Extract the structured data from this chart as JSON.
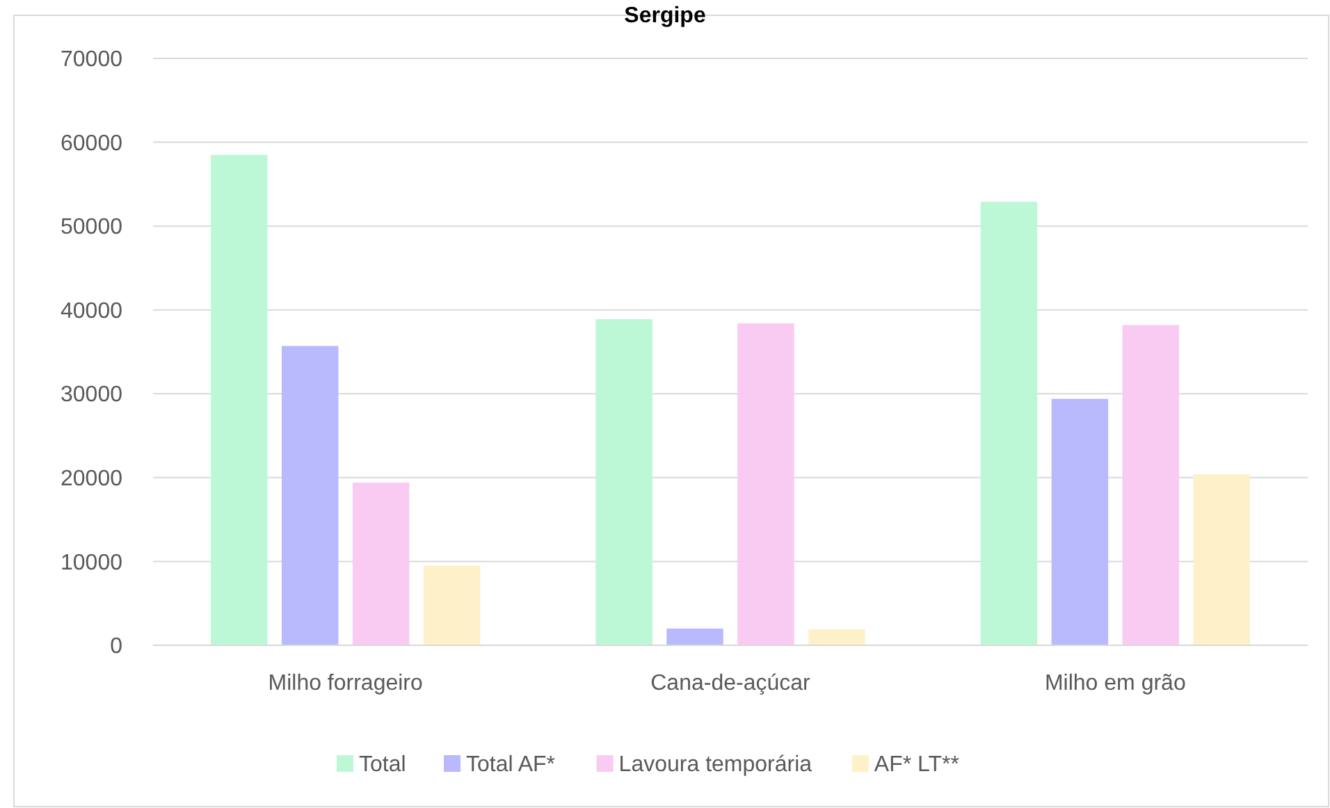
{
  "chart_data": {
    "type": "bar",
    "title": "Sergipe",
    "categories": [
      "Milho forrageiro",
      "Cana-de-açúcar",
      "Milho em grão"
    ],
    "series": [
      {
        "name": "Total",
        "color": "#bdf8d6",
        "values": [
          58500,
          38900,
          52900
        ]
      },
      {
        "name": "Total AF*",
        "color": "#b9b9fd",
        "values": [
          35700,
          2000,
          29400
        ]
      },
      {
        "name": "Lavoura temporária",
        "color": "#f9cbf2",
        "values": [
          19400,
          38400,
          38200
        ]
      },
      {
        "name": "AF* LT**",
        "color": "#fef1ca",
        "values": [
          9500,
          1900,
          20400
        ]
      }
    ],
    "ylim": [
      0,
      70000
    ],
    "yticks": [
      0,
      10000,
      20000,
      30000,
      40000,
      50000,
      60000,
      70000
    ],
    "grid": "y",
    "legend": "bottom"
  }
}
